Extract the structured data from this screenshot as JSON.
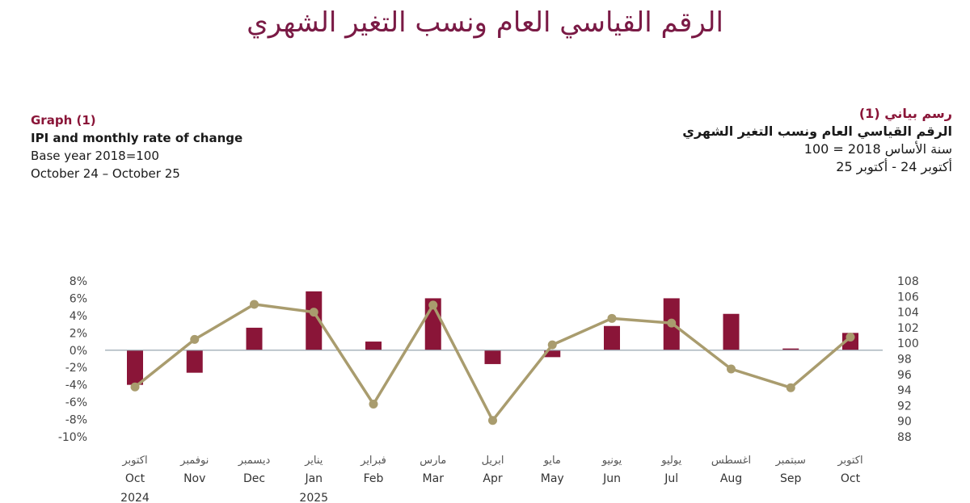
{
  "main_title": "الرقم القياسي العام ونسب التغير الشهري",
  "english": {
    "graph_label": "Graph (1)",
    "title": "IPI and monthly rate of change",
    "base": "Base year 2018=100",
    "period": "October 24 – October 25"
  },
  "arabic": {
    "graph_label": "رسم بياني (1)",
    "title": "الرقم القياسي العام ونسب التغير الشهري",
    "base": "سنة الأساس 2018 = 100",
    "period": "أكتوبر 24 - أكتوبر 25"
  },
  "colors": {
    "bar": "#8a1538",
    "line": "#a99c6e",
    "zero_line": "#9aa7b0"
  },
  "chart_data": {
    "type": "bar",
    "categories_en": [
      "Oct",
      "Nov",
      "Dec",
      "Jan",
      "Feb",
      "Mar",
      "Apr",
      "May",
      "Jun",
      "Jul",
      "Aug",
      "Sep",
      "Oct"
    ],
    "categories_ar": [
      "اكتوبر",
      "نوفمبر",
      "ديسمبر",
      "يناير",
      "فبراير",
      "مارس",
      "ابريل",
      "مايو",
      "يونيو",
      "يوليو",
      "اغسطس",
      "سبتمبر",
      "اكتوبر"
    ],
    "years": [
      {
        "index": 0,
        "label": "2024"
      },
      {
        "index": 3,
        "label": "2025"
      }
    ],
    "bars": {
      "axis": "left",
      "values": [
        -4.0,
        -2.6,
        2.6,
        6.8,
        1.0,
        6.0,
        -1.6,
        -0.8,
        2.8,
        6.0,
        4.2,
        0.2,
        2.0
      ]
    },
    "line": {
      "axis": "right",
      "values": [
        94.4,
        100.5,
        105.0,
        104.0,
        92.2,
        104.9,
        90.1,
        99.8,
        103.2,
        102.6,
        96.7,
        94.3,
        100.8
      ]
    },
    "y_left": {
      "min": -10,
      "max": 8,
      "ticks": [
        "8%",
        "6%",
        "4%",
        "2%",
        "0%",
        "-2%",
        "-4%",
        "-6%",
        "-8%",
        "-10%"
      ]
    },
    "y_right": {
      "min": 88,
      "max": 108,
      "ticks": [
        "108",
        "106",
        "104",
        "102",
        "100",
        "98",
        "96",
        "94",
        "92",
        "90",
        "88"
      ]
    }
  }
}
